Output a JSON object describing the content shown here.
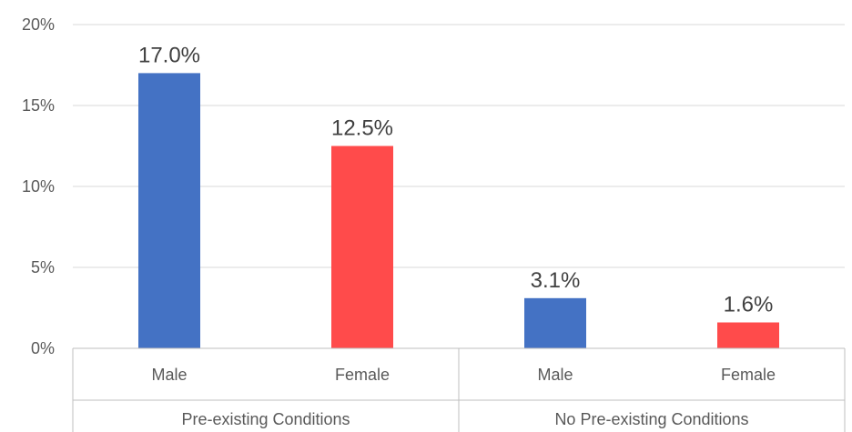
{
  "chart_data": {
    "type": "bar",
    "title": "",
    "xlabel": "",
    "ylabel": "",
    "ylim": [
      0,
      20
    ],
    "y_ticks": [
      "0%",
      "5%",
      "10%",
      "15%",
      "20%"
    ],
    "y_tick_values": [
      0,
      5,
      10,
      15,
      20
    ],
    "grid": true,
    "legend": "none",
    "groups": [
      {
        "label": "Pre-existing Conditions",
        "bars": [
          {
            "category": "Male",
            "value": 17.0,
            "label": "17.0%",
            "color": "#4472C4"
          },
          {
            "category": "Female",
            "value": 12.5,
            "label": "12.5%",
            "color": "#FF4B4B"
          }
        ]
      },
      {
        "label": "No Pre-existing Conditions",
        "bars": [
          {
            "category": "Male",
            "value": 3.1,
            "label": "3.1%",
            "color": "#4472C4"
          },
          {
            "category": "Female",
            "value": 1.6,
            "label": "1.6%",
            "color": "#FF4B4B"
          }
        ]
      }
    ]
  }
}
